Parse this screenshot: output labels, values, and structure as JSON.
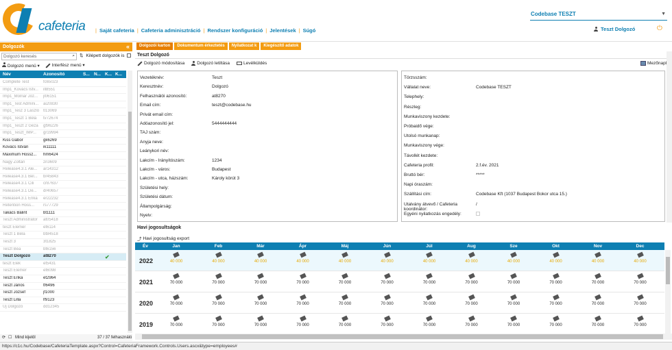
{
  "brand": {
    "logo_text": "cafeteria"
  },
  "topnav": [
    "Saját cafeteria",
    "Cafeteria adminisztráció",
    "Rendszer konfiguráció",
    "Jelentések",
    "Súgó"
  ],
  "company": {
    "selected": "Codebase TESZT"
  },
  "user": {
    "name": "Teszt Dolgozó"
  },
  "left_panel": {
    "title": "Dolgozók",
    "search_placeholder": "Dolgozó keresés",
    "filter_label": "Kilépett dolgozók is",
    "menu_employee": "Dolgozó menü",
    "menu_interface": "Interfész menü",
    "columns": [
      "Név",
      "Azonosító",
      "S...",
      "N...",
      "K...",
      "K..."
    ],
    "rows": [
      {
        "name": "Complete Test",
        "id": "fc65023",
        "state": "inactive",
        "s": true,
        "k": false,
        "k2": false
      },
      {
        "name": "Imp1_Kovács Istv...",
        "id": "ill8551",
        "state": "inactive",
        "s": true,
        "k": true,
        "k2": false
      },
      {
        "name": "Imp1_Molnár Józ...",
        "id": "jl06151",
        "state": "inactive",
        "s": true,
        "k": true,
        "k2": false
      },
      {
        "name": "Imp1_Test Admini...",
        "id": "ai20830",
        "state": "inactive",
        "s": true,
        "k": false,
        "k2": false
      },
      {
        "name": "Imp1_Tesz 3 László",
        "id": "tl13069",
        "state": "inactive",
        "s": true,
        "k": false,
        "k2": false
      },
      {
        "name": "Imp1_Teszt 1 Béla",
        "id": "tv72674",
        "state": "inactive",
        "s": true,
        "k": false,
        "k2": false
      },
      {
        "name": "Imp1_Teszt 2 Géza",
        "id": "gt96226",
        "state": "inactive",
        "s": true,
        "k": false,
        "k2": false
      },
      {
        "name": "Imp1_Teszt_IMP...",
        "id": "gr19994",
        "state": "inactive",
        "s": true,
        "k": false,
        "k2": false
      },
      {
        "name": "Kiss Gábor",
        "id": "gk6269",
        "state": "active",
        "s": true,
        "k": true,
        "k2": false
      },
      {
        "name": "Kovács István",
        "id": "ik11111",
        "state": "active",
        "s": true,
        "k": true,
        "k2": false
      },
      {
        "name": "Maximum Hossz...",
        "id": "hm6424",
        "state": "active",
        "s": true,
        "k": true,
        "k2": false
      },
      {
        "name": "Nagy Zoltán",
        "id": "zn3609",
        "state": "inactive",
        "s": true,
        "k": false,
        "k2": false
      },
      {
        "name": "Release4.3.1 Ale...",
        "id": "ar14312",
        "state": "inactive",
        "s": true,
        "k": false,
        "k2": true
      },
      {
        "name": "Release4.3.1 Bél...",
        "id": "br45843",
        "state": "inactive",
        "s": true,
        "k": false,
        "k2": false
      },
      {
        "name": "Release4.3.1 Cili",
        "id": "cr87637",
        "state": "inactive",
        "s": true,
        "k": false,
        "k2": false
      },
      {
        "name": "Release4.3.1 Dé...",
        "id": "dr40657",
        "state": "inactive",
        "s": true,
        "k": false,
        "k2": false
      },
      {
        "name": "Release4.3.1 Erika",
        "id": "er22232",
        "state": "inactive",
        "s": true,
        "k": false,
        "k2": false
      },
      {
        "name": "Retention Hoss...",
        "id": "rs77729",
        "state": "inactive",
        "s": true,
        "k": true,
        "k2": false
      },
      {
        "name": "Takács Bálint",
        "id": "bt1111",
        "state": "active",
        "s": true,
        "k": true,
        "k2": false
      },
      {
        "name": "Teszt Administrator",
        "id": "at05418",
        "state": "inactive",
        "s": true,
        "k": false,
        "k2": false
      },
      {
        "name": "teszt Elemér",
        "id": "et6114",
        "state": "inactive",
        "s": true,
        "k": false,
        "k2": false
      },
      {
        "name": "Teszt 1 Béla",
        "id": "bt84518",
        "state": "inactive",
        "s": true,
        "k": false,
        "k2": true
      },
      {
        "name": "Teszt 3",
        "id": "3t1825",
        "state": "inactive",
        "s": true,
        "k": true,
        "k2": false
      },
      {
        "name": "Teszt Béa",
        "id": "bt6156",
        "state": "inactive",
        "s": true,
        "k": false,
        "k2": false
      },
      {
        "name": "Teszt Dolgozó",
        "id": "at8270",
        "state": "selected",
        "s": true,
        "k": false,
        "k2": false,
        "check": true
      },
      {
        "name": "teszt Elek",
        "id": "et5431",
        "state": "inactive",
        "s": true,
        "k": false,
        "k2": false
      },
      {
        "name": "Teszt Elemér",
        "id": "et6098",
        "state": "inactive",
        "s": true,
        "k": false,
        "k2": false
      },
      {
        "name": "Teszt Erika",
        "id": "et2964",
        "state": "active",
        "s": true,
        "k": true,
        "k2": false
      },
      {
        "name": "Teszt János",
        "id": "tf6496",
        "state": "active",
        "s": true,
        "k": true,
        "k2": false
      },
      {
        "name": "Teszt József",
        "id": "jf1000",
        "state": "active",
        "s": true,
        "k": true,
        "k2": false
      },
      {
        "name": "Teszt Lilla",
        "id": "lf9123",
        "state": "active",
        "s": true,
        "k": true,
        "k2": false
      },
      {
        "name": "Új Dolgozó",
        "id": "dd12345",
        "state": "inactive",
        "s": true,
        "k": false,
        "k2": false
      }
    ],
    "footer_select": "Mind kijelöl",
    "footer_count": "37 / 37 felhasználó"
  },
  "tabs": [
    "Dolgozói karton",
    "Dokumentum érkeztetés",
    "Nyilatkozat k",
    "Kiegészítő adatok"
  ],
  "employee": {
    "title": "Teszt Dolgozó",
    "toolbar": {
      "modify": "Dolgozó módosítása",
      "delete": "Dolgozó letiltása",
      "mail": "Levélküldés",
      "fields": "Mezőnapló"
    },
    "left_fields": [
      {
        "label": "Vezetéknév:",
        "value": "Teszt"
      },
      {
        "label": "Keresztnév:",
        "value": "Dolgozó"
      },
      {
        "label": "Felhasználói azonosító:",
        "value": "at8270"
      },
      {
        "label": "Email cím:",
        "value": "teszt@codebase.hu"
      },
      {
        "label": "Privát email cím:",
        "value": ""
      },
      {
        "label": "Adóazonosító jel:",
        "value": "5444444444"
      },
      {
        "label": "TAJ szám:",
        "value": ""
      },
      {
        "label": "Anyja neve:",
        "value": ""
      },
      {
        "label": "Leánykori név:",
        "value": ""
      },
      {
        "label": "Lakcím - Irányítószám:",
        "value": "1234"
      },
      {
        "label": "Lakcím - város:",
        "value": "Budapest"
      },
      {
        "label": "Lakcím - utca, házszám:",
        "value": "Károly körút 3"
      },
      {
        "label": "Születési hely:",
        "value": ""
      },
      {
        "label": "Születési dátum:",
        "value": ""
      },
      {
        "label": "Állampolgárság:",
        "value": ""
      },
      {
        "label": "Nyelv:",
        "value": ""
      }
    ],
    "right_fields": [
      {
        "label": "Törzsszám:",
        "value": ""
      },
      {
        "label": "Vállalat neve:",
        "value": "Codebase TESZT"
      },
      {
        "label": "Telephely:",
        "value": ""
      },
      {
        "label": "Részleg:",
        "value": ""
      },
      {
        "label": "Munkaviszony kezdete:",
        "value": ""
      },
      {
        "label": "Próbaidő vége:",
        "value": ""
      },
      {
        "label": "Utolsó munkanap:",
        "value": ""
      },
      {
        "label": "Munkaviszony vége:",
        "value": ""
      },
      {
        "label": "Távollét kezdete:",
        "value": ""
      },
      {
        "label": "Cafeteria profil:",
        "value": "2.f.év. 2021"
      },
      {
        "label": "Bruttó bér:",
        "value": "*****"
      },
      {
        "label": "Napi óraszám:",
        "value": ""
      },
      {
        "label": "Szállítási cím:",
        "value": "Codebase Kft (1037 Budapest Bokor utca 15.)"
      },
      {
        "label": "Utalvány átvevő / Cafeteria koordinátor:",
        "value": "/"
      },
      {
        "label": "Egyéni nyilatkozás engedély:",
        "value": ""
      }
    ]
  },
  "monthly": {
    "title": "Havi jogosultságok",
    "export": "Havi jogosultság export",
    "year_label": "Év",
    "months": [
      "Jan",
      "Feb",
      "Már",
      "Ápr",
      "Máj",
      "Jún",
      "Júl",
      "Aug",
      "Sze",
      "Okt",
      "Nov",
      "Dec"
    ],
    "rows": [
      {
        "year": "2022",
        "values": [
          "40 000",
          "40 000",
          "40 000",
          "40 000",
          "40 000",
          "40 000",
          "40 000",
          "40 000",
          "40 000",
          "40 000",
          "40 000",
          "40 000"
        ],
        "current": true
      },
      {
        "year": "2021",
        "values": [
          "70 000",
          "70 000",
          "70 000",
          "70 000",
          "70 000",
          "70 000",
          "70 000",
          "70 000",
          "70 000",
          "70 000",
          "70 000",
          "70 000"
        ],
        "current": false
      },
      {
        "year": "2020",
        "values": [
          "70 000",
          "70 000",
          "70 000",
          "70 000",
          "70 000",
          "70 000",
          "70 000",
          "70 000",
          "70 000",
          "70 000",
          "70 000",
          "70 000"
        ],
        "current": false
      },
      {
        "year": "2019",
        "values": [
          "70 000",
          "70 000",
          "70 000",
          "70 000",
          "70 000",
          "70 000",
          "70 000",
          "70 000",
          "70 000",
          "70 000",
          "70 000",
          "70 000"
        ],
        "current": false
      }
    ]
  },
  "statusbar": "https://c1c.hu/Codebase/CafeteriaTemplate.aspx?Control=CafeteriaFramework.Controls.Users.ascx&type=employees#"
}
